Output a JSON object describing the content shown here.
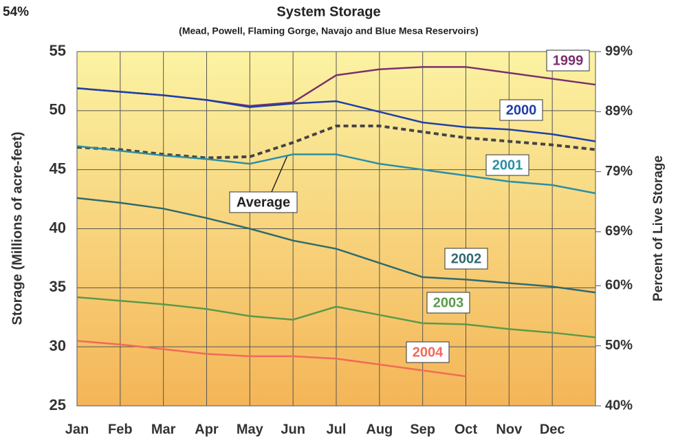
{
  "chart_data": {
    "type": "line",
    "title": "System Storage",
    "subtitle": "(Mead, Powell, Flaming Gorge, Navajo and Blue Mesa Reservoirs)",
    "annotation": "54%",
    "y_label": "Storage (Millions of acre-feet)",
    "y2_label": "Percent of Live Storage",
    "categories": [
      "Jan",
      "Feb",
      "Mar",
      "Apr",
      "May",
      "Jun",
      "Jul",
      "Aug",
      "Sep",
      "Oct",
      "Nov",
      "Dec",
      null
    ],
    "series": [
      {
        "name": "1999",
        "color": "#7b2f6e",
        "values": [
          51.9,
          51.6,
          51.3,
          50.9,
          50.4,
          50.7,
          53.0,
          53.5,
          53.7,
          53.7,
          53.2,
          52.7,
          52.2
        ]
      },
      {
        "name": "2000",
        "color": "#1f3fa8",
        "values": [
          51.9,
          51.6,
          51.3,
          50.9,
          50.3,
          50.6,
          50.8,
          49.9,
          49.0,
          48.6,
          48.4,
          48.0,
          47.4
        ]
      },
      {
        "name": "Average",
        "color": "#444444",
        "dashed": true,
        "values": [
          46.9,
          46.7,
          46.3,
          46.0,
          46.1,
          47.3,
          48.7,
          48.7,
          48.2,
          47.7,
          47.4,
          47.1,
          46.7
        ]
      },
      {
        "name": "2001",
        "color": "#2a8fa6",
        "values": [
          47.0,
          46.6,
          46.2,
          45.9,
          45.5,
          46.3,
          46.3,
          45.5,
          45.0,
          44.5,
          44.0,
          43.7,
          43.0
        ]
      },
      {
        "name": "2002",
        "color": "#2f6a6e",
        "values": [
          42.6,
          42.2,
          41.7,
          40.9,
          40.0,
          39.0,
          38.3,
          37.1,
          35.9,
          35.7,
          35.4,
          35.1,
          34.6
        ]
      },
      {
        "name": "2003",
        "color": "#5a9a4a",
        "values": [
          34.2,
          33.9,
          33.6,
          33.2,
          32.6,
          32.3,
          33.4,
          32.7,
          32.0,
          31.9,
          31.5,
          31.2,
          30.8
        ]
      },
      {
        "name": "2004",
        "color": "#f06a5a",
        "values": [
          30.5,
          30.2,
          29.8,
          29.4,
          29.2,
          29.2,
          29.0,
          28.5,
          28.0,
          27.5,
          null,
          null,
          null
        ]
      }
    ],
    "ylim": [
      25,
      55
    ],
    "yticks": [
      25,
      30,
      35,
      40,
      45,
      50,
      55
    ],
    "y2lim": [
      40,
      99
    ],
    "y2ticks": [
      {
        "value": 40,
        "label": "40%"
      },
      {
        "value": 50,
        "label": "50%"
      },
      {
        "value": 60,
        "label": "60%"
      },
      {
        "value": 69,
        "label": "69%"
      },
      {
        "value": 79,
        "label": "79%"
      },
      {
        "value": 89,
        "label": "89%"
      },
      {
        "value": 99,
        "label": "99%"
      }
    ],
    "grid": true
  }
}
